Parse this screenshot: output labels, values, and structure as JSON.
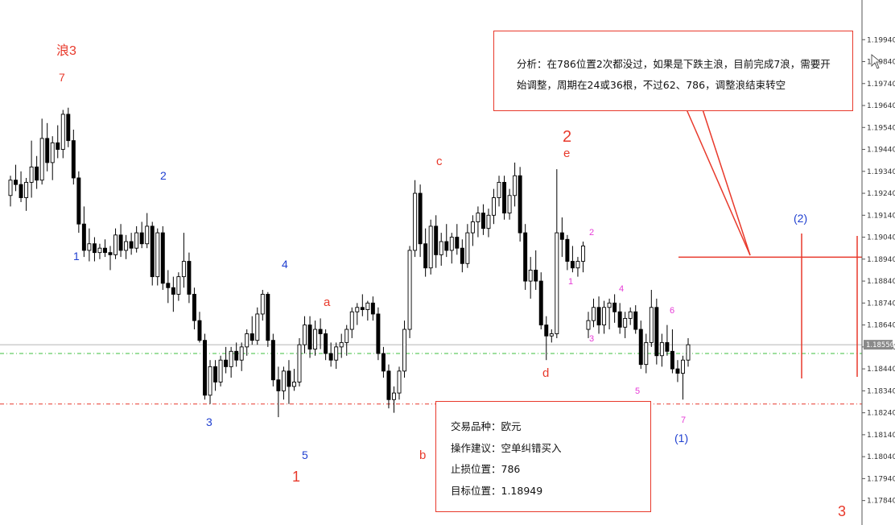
{
  "chart_data": {
    "type": "candlestick",
    "instrument_hint": "EURUSD",
    "ylim": [
      1.1778,
      1.2004
    ],
    "y_ticks": [
      "1.19940",
      "1.19840",
      "1.19740",
      "1.19640",
      "1.19540",
      "1.19440",
      "1.19340",
      "1.19240",
      "1.19140",
      "1.19040",
      "1.18940",
      "1.18840",
      "1.18740",
      "1.18640",
      "1.18540",
      "1.18440",
      "1.18340",
      "1.18240",
      "1.18140",
      "1.18040",
      "1.17940",
      "1.17840"
    ],
    "current_price_label": "1.18550",
    "current_price": 1.1855,
    "reference_levels": [
      {
        "price": 1.1851,
        "style": "green-dashdot"
      },
      {
        "price": 1.1828,
        "style": "red-dashdot"
      },
      {
        "price": 1.18949,
        "style": "red-solid"
      }
    ],
    "candles": [
      [
        1.1923,
        1.1932,
        1.1918,
        1.193
      ],
      [
        1.193,
        1.1937,
        1.1925,
        1.1928
      ],
      [
        1.1928,
        1.1934,
        1.192,
        1.1922
      ],
      [
        1.1922,
        1.1931,
        1.1916,
        1.1929
      ],
      [
        1.1929,
        1.1948,
        1.1922,
        1.1936
      ],
      [
        1.1936,
        1.1941,
        1.1926,
        1.193
      ],
      [
        1.193,
        1.1958,
        1.1928,
        1.1949
      ],
      [
        1.1949,
        1.1956,
        1.1934,
        1.1938
      ],
      [
        1.1938,
        1.195,
        1.193,
        1.1947
      ],
      [
        1.1947,
        1.1955,
        1.194,
        1.1944
      ],
      [
        1.1944,
        1.1962,
        1.194,
        1.196
      ],
      [
        1.196,
        1.1963,
        1.1945,
        1.1948
      ],
      [
        1.1948,
        1.1953,
        1.1928,
        1.1931
      ],
      [
        1.1931,
        1.1934,
        1.1906,
        1.191
      ],
      [
        1.191,
        1.1918,
        1.1895,
        1.1898
      ],
      [
        1.1898,
        1.1908,
        1.1893,
        1.1901
      ],
      [
        1.1901,
        1.1904,
        1.1893,
        1.1897
      ],
      [
        1.1897,
        1.1901,
        1.1894,
        1.1899
      ],
      [
        1.1899,
        1.1903,
        1.1895,
        1.1897
      ],
      [
        1.1897,
        1.19,
        1.1889,
        1.1896
      ],
      [
        1.1896,
        1.1908,
        1.1894,
        1.1905
      ],
      [
        1.1905,
        1.191,
        1.1895,
        1.1898
      ],
      [
        1.1898,
        1.1905,
        1.1894,
        1.1902
      ],
      [
        1.1902,
        1.1906,
        1.1896,
        1.1899
      ],
      [
        1.1899,
        1.1909,
        1.1897,
        1.1906
      ],
      [
        1.1906,
        1.1911,
        1.1899,
        1.1901
      ],
      [
        1.1901,
        1.1915,
        1.1899,
        1.1909
      ],
      [
        1.1909,
        1.1911,
        1.1882,
        1.1886
      ],
      [
        1.1886,
        1.1908,
        1.1882,
        1.1906
      ],
      [
        1.1906,
        1.1909,
        1.188,
        1.1883
      ],
      [
        1.1883,
        1.1889,
        1.1874,
        1.1881
      ],
      [
        1.1881,
        1.1886,
        1.187,
        1.1878
      ],
      [
        1.1878,
        1.1888,
        1.1875,
        1.1886
      ],
      [
        1.1886,
        1.1906,
        1.1881,
        1.1893
      ],
      [
        1.1893,
        1.1897,
        1.1874,
        1.1878
      ],
      [
        1.1878,
        1.1881,
        1.1862,
        1.1866
      ],
      [
        1.1866,
        1.187,
        1.1856,
        1.1857
      ],
      [
        1.1857,
        1.186,
        1.183,
        1.1832
      ],
      [
        1.1832,
        1.1848,
        1.1828,
        1.1845
      ],
      [
        1.1845,
        1.1848,
        1.1834,
        1.1838
      ],
      [
        1.1838,
        1.185,
        1.1836,
        1.1848
      ],
      [
        1.1848,
        1.1854,
        1.1842,
        1.1845
      ],
      [
        1.1845,
        1.1854,
        1.184,
        1.1852
      ],
      [
        1.1852,
        1.1856,
        1.1845,
        1.1848
      ],
      [
        1.1848,
        1.1856,
        1.1843,
        1.1854
      ],
      [
        1.1854,
        1.1862,
        1.185,
        1.186
      ],
      [
        1.186,
        1.1868,
        1.1855,
        1.1857
      ],
      [
        1.1857,
        1.1872,
        1.1855,
        1.1869
      ],
      [
        1.1869,
        1.188,
        1.1866,
        1.1878
      ],
      [
        1.1878,
        1.1879,
        1.1854,
        1.1857
      ],
      [
        1.1857,
        1.186,
        1.1836,
        1.1839
      ],
      [
        1.1839,
        1.1845,
        1.1822,
        1.1834
      ],
      [
        1.1834,
        1.1845,
        1.183,
        1.1843
      ],
      [
        1.1843,
        1.1848,
        1.1828,
        1.1836
      ],
      [
        1.1836,
        1.1844,
        1.1834,
        1.1838
      ],
      [
        1.1838,
        1.1858,
        1.1836,
        1.1855
      ],
      [
        1.1855,
        1.1868,
        1.1851,
        1.1864
      ],
      [
        1.1864,
        1.1868,
        1.1849,
        1.1853
      ],
      [
        1.1853,
        1.1866,
        1.185,
        1.1862
      ],
      [
        1.1862,
        1.1867,
        1.1853,
        1.186
      ],
      [
        1.186,
        1.1862,
        1.1848,
        1.1851
      ],
      [
        1.1851,
        1.1856,
        1.1845,
        1.1848
      ],
      [
        1.1848,
        1.1856,
        1.1844,
        1.1854
      ],
      [
        1.1854,
        1.186,
        1.1849,
        1.1856
      ],
      [
        1.1856,
        1.1864,
        1.185,
        1.1862
      ],
      [
        1.1862,
        1.1872,
        1.1858,
        1.187
      ],
      [
        1.187,
        1.1874,
        1.1864,
        1.1872
      ],
      [
        1.1872,
        1.1878,
        1.1868,
        1.1871
      ],
      [
        1.1871,
        1.1875,
        1.1866,
        1.1874
      ],
      [
        1.1874,
        1.1877,
        1.1866,
        1.1869
      ],
      [
        1.1869,
        1.1872,
        1.1848,
        1.1851
      ],
      [
        1.1851,
        1.1854,
        1.184,
        1.1843
      ],
      [
        1.1843,
        1.1846,
        1.1826,
        1.183
      ],
      [
        1.183,
        1.1836,
        1.1824,
        1.1833
      ],
      [
        1.1833,
        1.1845,
        1.183,
        1.1843
      ],
      [
        1.1843,
        1.1866,
        1.184,
        1.1862
      ],
      [
        1.1862,
        1.19,
        1.1858,
        1.1898
      ],
      [
        1.1898,
        1.193,
        1.1895,
        1.1924
      ],
      [
        1.1924,
        1.1928,
        1.1895,
        1.1901
      ],
      [
        1.1901,
        1.1908,
        1.1886,
        1.189
      ],
      [
        1.189,
        1.1912,
        1.1887,
        1.1909
      ],
      [
        1.1909,
        1.1914,
        1.189,
        1.1896
      ],
      [
        1.1896,
        1.1906,
        1.1891,
        1.1902
      ],
      [
        1.1902,
        1.191,
        1.1895,
        1.1898
      ],
      [
        1.1898,
        1.1906,
        1.1892,
        1.1904
      ],
      [
        1.1904,
        1.191,
        1.1896,
        1.1899
      ],
      [
        1.1899,
        1.1903,
        1.1888,
        1.1892
      ],
      [
        1.1892,
        1.191,
        1.189,
        1.1906
      ],
      [
        1.1906,
        1.1914,
        1.19,
        1.1911
      ],
      [
        1.1911,
        1.1918,
        1.1904,
        1.1915
      ],
      [
        1.1915,
        1.1919,
        1.1905,
        1.1908
      ],
      [
        1.1908,
        1.1917,
        1.1904,
        1.1914
      ],
      [
        1.1914,
        1.1926,
        1.191,
        1.1922
      ],
      [
        1.1922,
        1.1932,
        1.1918,
        1.1929
      ],
      [
        1.1929,
        1.1932,
        1.1912,
        1.1915
      ],
      [
        1.1915,
        1.1926,
        1.1912,
        1.1923
      ],
      [
        1.1923,
        1.1938,
        1.1918,
        1.1932
      ],
      [
        1.1932,
        1.1936,
        1.1902,
        1.1906
      ],
      [
        1.1906,
        1.191,
        1.188,
        1.1884
      ],
      [
        1.1884,
        1.1895,
        1.1876,
        1.1889
      ],
      [
        1.1889,
        1.1898,
        1.188,
        1.1884
      ],
      [
        1.1884,
        1.1888,
        1.1862,
        1.1864
      ],
      [
        1.1864,
        1.1868,
        1.1848,
        1.1859
      ],
      [
        1.1859,
        1.1862,
        1.1856,
        1.186
      ],
      [
        1.186,
        1.1935,
        1.1858,
        1.1906
      ],
      [
        1.1906,
        1.1913,
        1.1895,
        1.1903
      ],
      [
        1.1903,
        1.1905,
        1.1889,
        1.1893
      ],
      [
        1.1893,
        1.19,
        1.1888,
        1.189
      ],
      [
        1.189,
        1.1895,
        1.1886,
        1.1893
      ],
      [
        1.1893,
        1.1902,
        1.1888,
        1.19
      ],
      [
        1.1862,
        1.187,
        1.1858,
        1.1866
      ],
      [
        1.1866,
        1.1876,
        1.1863,
        1.1872
      ],
      [
        1.1872,
        1.1877,
        1.186,
        1.1864
      ],
      [
        1.1864,
        1.1875,
        1.186,
        1.1872
      ],
      [
        1.1872,
        1.1876,
        1.1862,
        1.1874
      ],
      [
        1.1874,
        1.1878,
        1.1865,
        1.187
      ],
      [
        1.187,
        1.1874,
        1.186,
        1.1863
      ],
      [
        1.1863,
        1.187,
        1.1858,
        1.1867
      ],
      [
        1.1867,
        1.1872,
        1.1864,
        1.187
      ],
      [
        1.187,
        1.1873,
        1.186,
        1.1862
      ],
      [
        1.1862,
        1.1866,
        1.1844,
        1.1846
      ],
      [
        1.1846,
        1.186,
        1.1842,
        1.1856
      ],
      [
        1.1856,
        1.188,
        1.1854,
        1.1872
      ],
      [
        1.1872,
        1.1876,
        1.1846,
        1.185
      ],
      [
        1.185,
        1.186,
        1.1845,
        1.1856
      ],
      [
        1.1856,
        1.1864,
        1.185,
        1.1852
      ],
      [
        1.1852,
        1.1862,
        1.1842,
        1.1844
      ],
      [
        1.1844,
        1.1848,
        1.1838,
        1.1842
      ],
      [
        1.1842,
        1.185,
        1.183,
        1.1848
      ],
      [
        1.1848,
        1.1858,
        1.1845,
        1.1855
      ]
    ]
  },
  "labels": {
    "wave_big": {
      "text": "浪3"
    },
    "n7_top": {
      "text": "7"
    },
    "b2_blue": {
      "text": "2"
    },
    "b1_blue": {
      "text": "1"
    },
    "b3_blue": {
      "text": "3"
    },
    "b4_blue": {
      "text": "4"
    },
    "b5_blue": {
      "text": "5"
    },
    "red1": {
      "text": "1"
    },
    "red_a": {
      "text": "a"
    },
    "red_b": {
      "text": "b"
    },
    "red_c": {
      "text": "c"
    },
    "red_d": {
      "text": "d"
    },
    "red2": {
      "text": "2"
    },
    "red_e": {
      "text": "e"
    },
    "p1": {
      "text": "1"
    },
    "p2": {
      "text": "2"
    },
    "p3": {
      "text": "3"
    },
    "p4": {
      "text": "4"
    },
    "p5": {
      "text": "5"
    },
    "p6": {
      "text": "6"
    },
    "p7": {
      "text": "7"
    },
    "paren1": {
      "text": "(1)"
    },
    "paren2": {
      "text": "(2)"
    },
    "red3_corner": {
      "text": "3"
    }
  },
  "analysis": {
    "line1": "分析：在786位置2次都没过，如果是下跌主浪，目前完成7浪，需要开",
    "line2": "始调整，周期在24或36根，不过62、786，调整浪结束转空"
  },
  "trade": {
    "instrument": "交易品种：欧元",
    "advice": "操作建议：空单纠错买入",
    "stop": "止损位置：786",
    "target": "目标位置：1.18949"
  },
  "colors": {
    "red": "#e8392b",
    "blue": "#1f3fd0",
    "pink": "#e63ad6",
    "green_line": "#3cbf3c",
    "candle_up": "#ffffff",
    "candle_down": "#000000"
  }
}
